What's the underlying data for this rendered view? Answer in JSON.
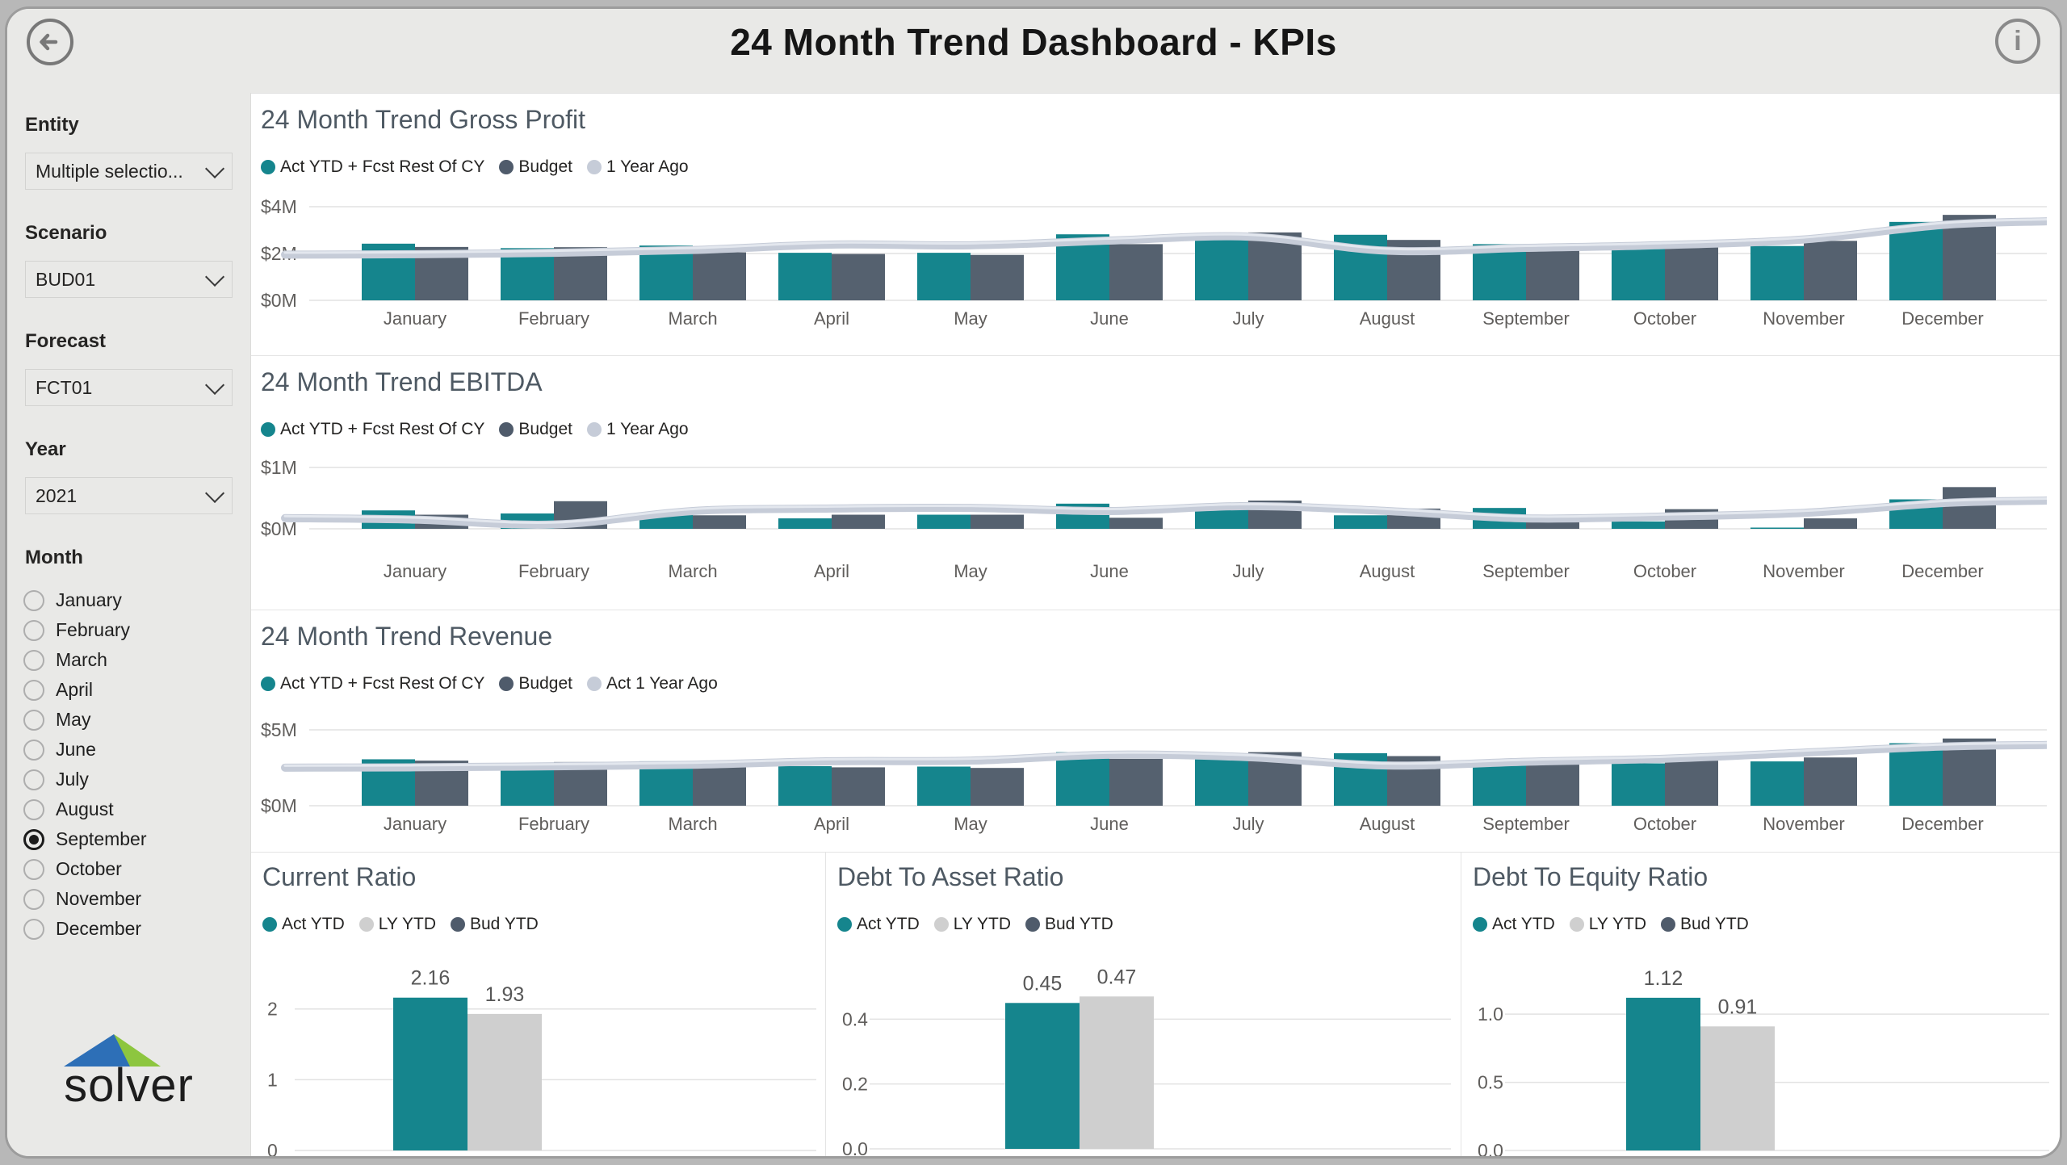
{
  "header": {
    "title": "24 Month Trend Dashboard - KPIs",
    "back_icon": "left-arrow",
    "info_icon": "i"
  },
  "sidebar": {
    "filters": [
      {
        "label": "Entity",
        "value": "Multiple selectio..."
      },
      {
        "label": "Scenario",
        "value": "BUD01"
      },
      {
        "label": "Forecast",
        "value": "FCT01"
      },
      {
        "label": "Year",
        "value": "2021"
      }
    ],
    "month": {
      "label": "Month",
      "options": [
        "January",
        "February",
        "March",
        "April",
        "May",
        "June",
        "July",
        "August",
        "September",
        "October",
        "November",
        "December"
      ],
      "selected": "September"
    },
    "logo_text": "solver"
  },
  "colors": {
    "teal": "#15858D",
    "slate": "#55616F",
    "line_gray": "#C6CCD8",
    "line_highlight": "#E3E7EE",
    "light_gray_bar": "#CFCFCF",
    "legend_slate_dot": "#4F5B6B",
    "grid": "#E2E2E2",
    "axis_text": "#605E5C",
    "value_label": "#575757",
    "panel_bg": "#E9E9E7",
    "logo_blue": "#2D6FB7",
    "logo_green": "#8DC63F"
  },
  "chart_data": [
    {
      "id": "gross_profit",
      "type": "bar",
      "title": "24 Month Trend Gross Profit",
      "categories": [
        "January",
        "February",
        "March",
        "April",
        "May",
        "June",
        "July",
        "August",
        "September",
        "October",
        "November",
        "December"
      ],
      "series": [
        {
          "name": "Act YTD + Fcst Rest Of CY",
          "type": "bar",
          "color": "#15858D",
          "values": [
            2.42,
            2.23,
            2.34,
            2.03,
            2.03,
            2.82,
            2.6,
            2.8,
            2.4,
            2.22,
            2.32,
            3.35
          ]
        },
        {
          "name": "Budget",
          "type": "bar",
          "color": "#55616F",
          "values": [
            2.28,
            2.27,
            2.05,
            1.98,
            1.94,
            2.4,
            2.9,
            2.58,
            2.22,
            2.4,
            2.54,
            3.65
          ]
        },
        {
          "name": "1 Year Ago",
          "type": "line",
          "color": "#C6CCD8",
          "values": [
            1.97,
            2.03,
            2.15,
            2.38,
            2.35,
            2.55,
            2.72,
            2.12,
            2.24,
            2.36,
            2.6,
            3.22
          ]
        }
      ],
      "ylabel_unit": "$M",
      "ylim": [
        0,
        4
      ],
      "yticks": [
        {
          "v": 4,
          "label": "$4M"
        },
        {
          "v": 2,
          "label": "$2M"
        },
        {
          "v": 0,
          "label": "$0M"
        }
      ],
      "legend_position": "top",
      "grid": true
    },
    {
      "id": "ebitda",
      "type": "bar",
      "title": "24 Month Trend EBITDA",
      "categories": [
        "January",
        "February",
        "March",
        "April",
        "May",
        "June",
        "July",
        "August",
        "September",
        "October",
        "November",
        "December"
      ],
      "series": [
        {
          "name": "Act YTD + Fcst Rest Of CY",
          "type": "bar",
          "color": "#15858D",
          "values": [
            0.3,
            0.25,
            0.23,
            0.17,
            0.23,
            0.41,
            0.36,
            0.22,
            0.34,
            0.12,
            0.02,
            0.48
          ]
        },
        {
          "name": "Budget",
          "type": "bar",
          "color": "#55616F",
          "values": [
            0.23,
            0.45,
            0.22,
            0.23,
            0.23,
            0.18,
            0.46,
            0.33,
            0.12,
            0.32,
            0.17,
            0.68
          ]
        },
        {
          "name": "1 Year Ago",
          "type": "line",
          "color": "#C6CCD8",
          "values": [
            0.15,
            0.07,
            0.29,
            0.33,
            0.34,
            0.29,
            0.37,
            0.29,
            0.17,
            0.2,
            0.26,
            0.42
          ]
        }
      ],
      "ylabel_unit": "$M",
      "ylim": [
        0,
        1
      ],
      "yticks": [
        {
          "v": 1,
          "label": "$1M"
        },
        {
          "v": 0,
          "label": "$0M"
        }
      ],
      "legend_position": "top",
      "grid": true
    },
    {
      "id": "revenue",
      "type": "bar",
      "title": "24 Month Trend Revenue",
      "categories": [
        "January",
        "February",
        "March",
        "April",
        "May",
        "June",
        "July",
        "August",
        "September",
        "October",
        "November",
        "December"
      ],
      "series": [
        {
          "name": "Act YTD + Fcst Rest Of CY",
          "type": "bar",
          "color": "#15858D",
          "values": [
            3.06,
            2.79,
            2.93,
            2.61,
            2.58,
            3.53,
            3.14,
            3.46,
            3.0,
            2.79,
            2.92,
            4.12
          ]
        },
        {
          "name": "Budget",
          "type": "bar",
          "color": "#55616F",
          "values": [
            2.97,
            2.88,
            2.58,
            2.53,
            2.49,
            3.09,
            3.53,
            3.27,
            2.74,
            2.97,
            3.18,
            4.43
          ]
        },
        {
          "name": "Act 1 Year Ago",
          "type": "line",
          "color": "#C6CCD8",
          "values": [
            2.53,
            2.6,
            2.7,
            2.93,
            2.97,
            3.36,
            3.2,
            2.65,
            2.9,
            3.1,
            3.5,
            3.9
          ]
        }
      ],
      "ylabel_unit": "$M",
      "ylim": [
        0,
        5
      ],
      "yticks": [
        {
          "v": 5,
          "label": "$5M"
        },
        {
          "v": 0,
          "label": "$0M"
        }
      ],
      "legend_position": "top",
      "grid": true
    },
    {
      "id": "current_ratio",
      "type": "bar",
      "title": "Current Ratio",
      "categories": [
        ""
      ],
      "series": [
        {
          "name": "Act YTD",
          "type": "bar",
          "color": "#15858D",
          "values": [
            2.16
          ],
          "data_label": "2.16"
        },
        {
          "name": "LY YTD",
          "type": "bar",
          "color": "#CFCFCF",
          "values": [
            1.93
          ],
          "data_label": "1.93"
        },
        {
          "name": "Bud YTD",
          "type": "bar",
          "color": "#4F5B6B",
          "values": [],
          "data_label": ""
        }
      ],
      "ylim": [
        0,
        2.91
      ],
      "yticks": [
        {
          "v": 2,
          "label": "2"
        },
        {
          "v": 1,
          "label": "1"
        },
        {
          "v": 0,
          "label": "0"
        }
      ],
      "legend_position": "top",
      "grid": true
    },
    {
      "id": "debt_to_asset",
      "type": "bar",
      "title": "Debt To Asset Ratio",
      "categories": [
        ""
      ],
      "series": [
        {
          "name": "Act YTD",
          "type": "bar",
          "color": "#15858D",
          "values": [
            0.45
          ],
          "data_label": "0.45"
        },
        {
          "name": "LY YTD",
          "type": "bar",
          "color": "#CFCFCF",
          "values": [
            0.47
          ],
          "data_label": "0.47"
        },
        {
          "name": "Bud YTD",
          "type": "bar",
          "color": "#4F5B6B",
          "values": [],
          "data_label": ""
        }
      ],
      "ylim": [
        0,
        0.63
      ],
      "yticks": [
        {
          "v": 0.4,
          "label": "0.4"
        },
        {
          "v": 0.2,
          "label": "0.2"
        },
        {
          "v": 0,
          "label": "0.0"
        }
      ],
      "legend_position": "top",
      "grid": true
    },
    {
      "id": "debt_to_equity",
      "type": "bar",
      "title": "Debt To Equity Ratio",
      "categories": [
        ""
      ],
      "series": [
        {
          "name": "Act YTD",
          "type": "bar",
          "color": "#15858D",
          "values": [
            1.12
          ],
          "data_label": "1.12"
        },
        {
          "name": "LY YTD",
          "type": "bar",
          "color": "#CFCFCF",
          "values": [
            0.91
          ],
          "data_label": "0.91"
        },
        {
          "name": "Bud YTD",
          "type": "bar",
          "color": "#4F5B6B",
          "values": [],
          "data_label": ""
        }
      ],
      "ylim": [
        0,
        1.51
      ],
      "yticks": [
        {
          "v": 1.0,
          "label": "1.0"
        },
        {
          "v": 0.5,
          "label": "0.5"
        },
        {
          "v": 0,
          "label": "0.0"
        }
      ],
      "legend_position": "top",
      "grid": true
    }
  ]
}
